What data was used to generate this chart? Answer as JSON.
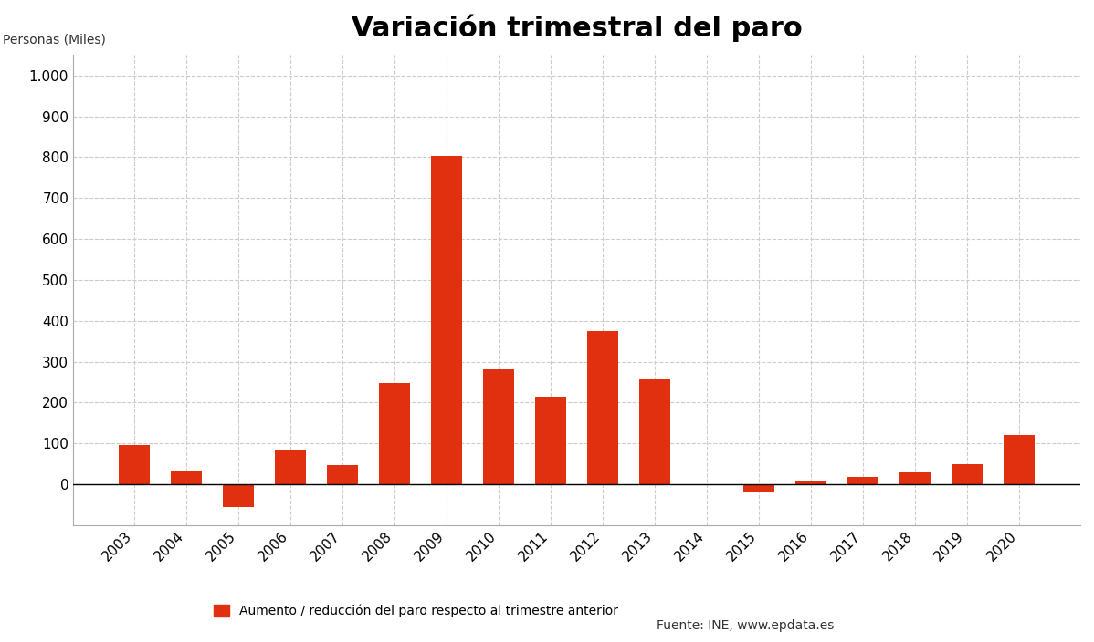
{
  "title": "Variación trimestral del paro",
  "ylabel": "Personas (Miles)",
  "categories": [
    "2003",
    "2004",
    "2005",
    "2006",
    "2007",
    "2008",
    "2009",
    "2010",
    "2011",
    "2012",
    "2013",
    "2014",
    "2015",
    "2016",
    "2017",
    "2018",
    "2019",
    "2020"
  ],
  "values": [
    95,
    33,
    -55,
    82,
    47,
    248,
    802,
    282,
    215,
    375,
    257,
    1,
    -20,
    10,
    18,
    30,
    50,
    120
  ],
  "bar_color": "#e03010",
  "background_color": "#ffffff",
  "grid_color": "#cccccc",
  "ylim_min": -100,
  "ylim_max": 1050,
  "yticks": [
    0,
    100,
    200,
    300,
    400,
    500,
    600,
    700,
    800,
    900,
    1000
  ],
  "legend_label": "Aumento / reducción del paro respecto al trimestre anterior",
  "source_text": "Fuente: INE, www.epdata.es",
  "title_fontsize": 22,
  "label_fontsize": 10,
  "tick_fontsize": 11
}
